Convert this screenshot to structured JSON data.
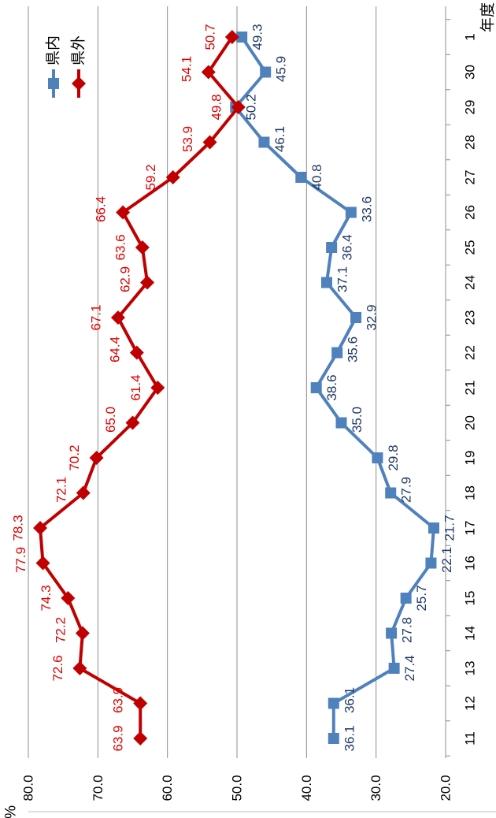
{
  "chart_data": {
    "type": "line",
    "orientation": "rotated-90-cw",
    "xlabel": "年度",
    "ylabel": "%",
    "ylim": [
      20.0,
      80.0
    ],
    "y_ticks": [
      "80.0",
      "70.0",
      "60.0",
      "50.0",
      "40.0",
      "30.0",
      "20.0"
    ],
    "categories": [
      "11",
      "12",
      "13",
      "14",
      "15",
      "16",
      "17",
      "18",
      "19",
      "20",
      "21",
      "22",
      "23",
      "24",
      "25",
      "26",
      "27",
      "28",
      "29",
      "30",
      "1"
    ],
    "grid": true,
    "legend": "top-right",
    "series": [
      {
        "name": "県内",
        "color": "#4f81bd",
        "label_color": "#1f3864",
        "marker": "square",
        "values": [
          36.1,
          36.1,
          27.4,
          27.8,
          25.7,
          22.1,
          21.7,
          27.9,
          29.8,
          35.0,
          38.6,
          35.6,
          32.9,
          37.1,
          36.4,
          33.6,
          40.8,
          46.1,
          50.2,
          45.9,
          49.3
        ],
        "labels": [
          "36.1",
          "36.1",
          "27.4",
          "27.8",
          "25.7",
          "22.1",
          "21.7",
          "27.9",
          "29.8",
          "35.0",
          "38.6",
          "35.6",
          "32.9",
          "37.1",
          "36.4",
          "33.6",
          "40.8",
          "46.1",
          "50.2",
          "45.9",
          "49.3"
        ]
      },
      {
        "name": "県外",
        "color": "#c00000",
        "label_color": "#e00000",
        "marker": "diamond",
        "values": [
          63.9,
          63.9,
          72.6,
          72.2,
          74.3,
          77.9,
          78.3,
          72.1,
          70.2,
          65.0,
          61.4,
          64.4,
          67.1,
          62.9,
          63.6,
          66.4,
          59.2,
          53.9,
          49.8,
          54.1,
          50.7
        ],
        "labels": [
          "63.9",
          "63.9",
          "72.6",
          "72.2",
          "74.3",
          "77.9",
          "78.3",
          "72.1",
          "70.2",
          "65.0",
          "61.4",
          "64.4",
          "67.1",
          "62.9",
          "63.6",
          "66.4",
          "59.2",
          "53.9",
          "49.8",
          "54.1",
          "50.7"
        ]
      }
    ]
  }
}
